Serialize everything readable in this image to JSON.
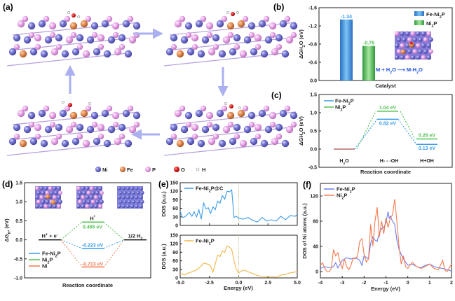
{
  "figure": {
    "panels": {
      "a": {
        "label": "(a)",
        "legend": [
          {
            "element": "Ni",
            "color": "#7b7bd6"
          },
          {
            "element": "Fe",
            "color": "#e08850"
          },
          {
            "element": "P",
            "color": "#e6a3e6"
          },
          {
            "element": "O",
            "color": "#e02020"
          },
          {
            "element": "H",
            "color": "#f0f0f0"
          }
        ],
        "cycle_arrows": [
          "right",
          "down",
          "left",
          "up"
        ]
      },
      "b": {
        "label": "(b)"
      },
      "c": {
        "label": "(c)"
      },
      "d": {
        "label": "(d)"
      },
      "e": {
        "label": "(e)"
      },
      "f": {
        "label": "(f)"
      }
    }
  },
  "chart_data": [
    {
      "id": "b",
      "type": "bar",
      "categories": [
        "Fe-Ni2P",
        "Ni2P"
      ],
      "values": [
        -1.34,
        -0.76
      ],
      "value_labels": [
        "-1.34",
        "-0.76"
      ],
      "colors": [
        "#3a9be8",
        "#52c152"
      ],
      "ylabel": "ΔG_H2O (eV)",
      "xlabel": "Catalyst",
      "ylim": [
        0.0,
        -1.6
      ],
      "yticks": [
        "-1.6",
        "-1.2",
        "-0.8",
        "-0.4",
        "0.0"
      ],
      "legend": [
        "Fe-Ni2P",
        "Ni2P"
      ],
      "legend_position": "top-right",
      "annotation": "M + H2O ⟶ M-H2O"
    },
    {
      "id": "c",
      "type": "line",
      "title": "",
      "ylabel": "ΔG_H2O (eV)",
      "xlabel": "Reaction coordinate",
      "ylim": [
        -0.5,
        1.5
      ],
      "yticks": [
        "1.5",
        "1.0",
        "0.5",
        "0.0",
        "-0.5"
      ],
      "categories": [
        "H2O",
        "H- - -OH",
        "H+OH"
      ],
      "series": [
        {
          "name": "Fe-Ni2P",
          "color": "#3a9be8",
          "values": [
            0.0,
            0.82,
            0.13
          ],
          "labels": [
            "",
            "0.82 eV",
            "0.13 eV"
          ]
        },
        {
          "name": "Ni2P",
          "color": "#52c152",
          "values": [
            0.0,
            1.04,
            0.28
          ],
          "labels": [
            "",
            "1.04 eV",
            "0.28 eV"
          ]
        }
      ],
      "start_color": "#b06a6a",
      "legend_position": "top-left"
    },
    {
      "id": "d",
      "type": "line",
      "ylabel": "ΔG_H* (eV)",
      "xlabel": "Reaction coordinate",
      "ylim": [
        -1.0,
        1.5
      ],
      "yticks": [
        "1.5",
        "1.0",
        "0.5",
        "0.0",
        "-0.5",
        "-1.0"
      ],
      "categories": [
        "H+ + e-",
        "H*",
        "1/2 H2"
      ],
      "series": [
        {
          "name": "Fe-Ni2P",
          "color": "#3a9be8",
          "values": [
            0.0,
            -0.223,
            0.0
          ],
          "label": "-0.223 eV"
        },
        {
          "name": "Ni2P",
          "color": "#52c152",
          "values": [
            0.0,
            0.465,
            0.0
          ],
          "label": "0.465 eV"
        },
        {
          "name": "Ni",
          "color": "#f07a50",
          "values": [
            0.0,
            -0.713,
            0.0
          ],
          "label": "-0.713 eV"
        }
      ],
      "legend_position": "bottom-left"
    },
    {
      "id": "e",
      "type": "line",
      "xlabel": "Energy (eV)",
      "ylabel": "DOS (a.u.)",
      "xlim": [
        -5.0,
        5.0
      ],
      "xticks": [
        "-5.0",
        "-2.5",
        "0.0",
        "2.5",
        "5.0"
      ],
      "ylim": [
        0,
        150
      ],
      "yticks": [
        "150",
        "120",
        "90",
        "60",
        "30",
        "0"
      ],
      "series": [
        {
          "name": "Fe-Ni2P@C",
          "color": "#3a9be8",
          "x": [
            -5.0,
            -4.8,
            -4.6,
            -4.4,
            -4.2,
            -4.0,
            -3.8,
            -3.6,
            -3.4,
            -3.2,
            -3.0,
            -2.8,
            -2.6,
            -2.4,
            -2.2,
            -2.0,
            -1.8,
            -1.6,
            -1.4,
            -1.2,
            -1.0,
            -0.8,
            -0.6,
            -0.4,
            -0.2,
            0.0,
            0.4,
            0.8,
            1.2,
            1.6,
            2.0,
            2.4,
            2.8,
            3.2,
            3.6,
            4.0,
            4.4,
            4.8,
            5.0
          ],
          "y": [
            50,
            28,
            30,
            38,
            45,
            32,
            48,
            30,
            55,
            22,
            80,
            58,
            62,
            42,
            65,
            55,
            85,
            78,
            105,
            92,
            120,
            118,
            125,
            28,
            32,
            25,
            22,
            28,
            18,
            12,
            28,
            15,
            20,
            15,
            32,
            20,
            35,
            32,
            38
          ]
        },
        {
          "name": "Fe-Ni2P",
          "color": "#f0b84a",
          "x": [
            -5.0,
            -4.8,
            -4.6,
            -4.4,
            -4.2,
            -4.0,
            -3.8,
            -3.6,
            -3.4,
            -3.2,
            -3.0,
            -2.8,
            -2.6,
            -2.4,
            -2.2,
            -2.0,
            -1.8,
            -1.6,
            -1.4,
            -1.2,
            -1.0,
            -0.8,
            -0.6,
            -0.4,
            -0.2,
            0.0,
            0.4,
            0.8,
            1.2,
            1.6,
            2.0,
            2.4,
            2.8,
            3.2,
            3.6,
            4.0,
            4.4,
            4.8,
            5.0
          ],
          "y": [
            12,
            15,
            10,
            16,
            18,
            22,
            25,
            28,
            35,
            42,
            52,
            50,
            48,
            42,
            20,
            50,
            80,
            75,
            95,
            90,
            112,
            108,
            100,
            60,
            30,
            18,
            28,
            22,
            15,
            8,
            5,
            3,
            5,
            2,
            10,
            12,
            18,
            20,
            25
          ]
        }
      ]
    },
    {
      "id": "f",
      "type": "line",
      "xlabel": "Energy (eV)",
      "ylabel": "DOS of Ni atoms (a.u.)",
      "xlim": [
        -4,
        2
      ],
      "xticks": [
        "-4",
        "-3",
        "-2",
        "-1",
        "0",
        "1",
        "2"
      ],
      "ylim": [
        -10,
        140
      ],
      "yticks": [
        "0",
        "40",
        "80",
        "120"
      ],
      "series": [
        {
          "name": "Fe-Ni2P",
          "color": "#6a7cf0",
          "x": [
            -4.0,
            -3.8,
            -3.6,
            -3.4,
            -3.3,
            -3.2,
            -3.0,
            -2.8,
            -2.6,
            -2.4,
            -2.2,
            -2.1,
            -2.0,
            -1.8,
            -1.7,
            -1.6,
            -1.5,
            -1.4,
            -1.3,
            -1.2,
            -1.1,
            -1.0,
            -0.9,
            -0.85,
            -0.8,
            -0.7,
            -0.6,
            -0.5,
            -0.4,
            -0.2,
            0.0,
            0.2,
            0.4,
            0.6,
            0.8,
            1.0,
            1.2,
            1.4,
            1.6,
            1.8,
            2.0
          ],
          "y": [
            5,
            8,
            6,
            8,
            14,
            6,
            18,
            22,
            20,
            22,
            18,
            10,
            25,
            20,
            45,
            55,
            50,
            48,
            62,
            68,
            70,
            78,
            95,
            85,
            88,
            80,
            75,
            50,
            35,
            20,
            10,
            12,
            8,
            6,
            10,
            12,
            8,
            6,
            5,
            3,
            1
          ]
        },
        {
          "name": "Ni2P",
          "color": "#f47a50",
          "x": [
            -4.0,
            -3.9,
            -3.8,
            -3.7,
            -3.6,
            -3.5,
            -3.4,
            -3.3,
            -3.2,
            -3.1,
            -3.0,
            -2.9,
            -2.8,
            -2.7,
            -2.6,
            -2.5,
            -2.4,
            -2.3,
            -2.2,
            -2.1,
            -2.0,
            -1.9,
            -1.8,
            -1.7,
            -1.6,
            -1.5,
            -1.4,
            -1.3,
            -1.2,
            -1.1,
            -1.0,
            -0.9,
            -0.8,
            -0.7,
            -0.6,
            -0.5,
            -0.4,
            -0.3,
            -0.2,
            -0.1,
            0.0,
            0.2,
            0.4,
            0.6,
            0.8,
            1.0,
            1.2,
            1.4,
            1.6,
            1.7,
            1.8,
            2.0
          ],
          "y": [
            10,
            14,
            5,
            0,
            0,
            5,
            35,
            25,
            30,
            15,
            5,
            20,
            8,
            3,
            10,
            22,
            20,
            25,
            48,
            52,
            28,
            15,
            20,
            75,
            40,
            80,
            102,
            55,
            80,
            60,
            85,
            70,
            85,
            90,
            115,
            80,
            40,
            12,
            25,
            8,
            5,
            15,
            8,
            5,
            8,
            12,
            5,
            3,
            18,
            2,
            0,
            12
          ]
        }
      ],
      "legend_position": "top-left"
    }
  ]
}
